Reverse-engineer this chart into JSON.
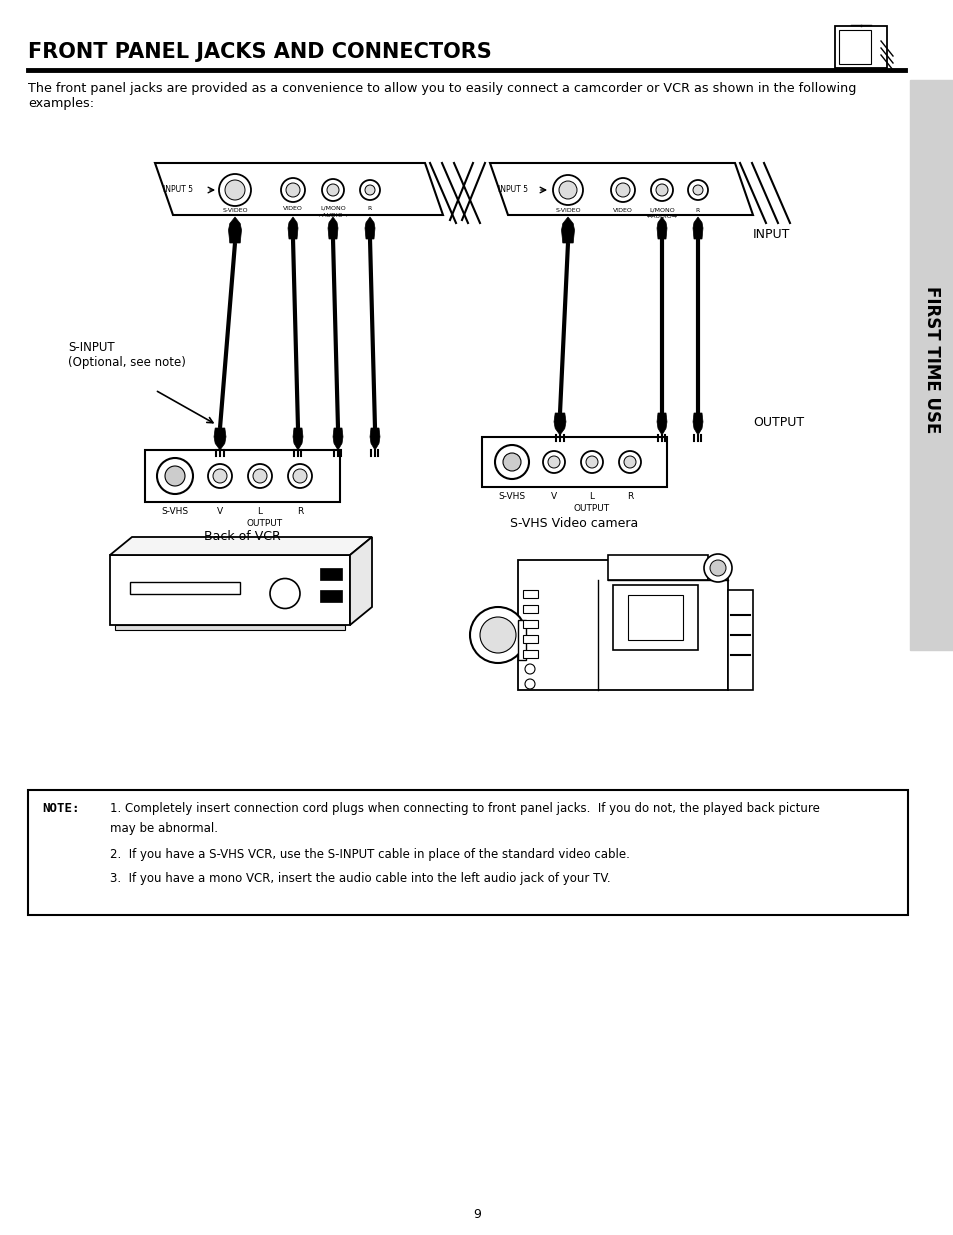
{
  "title": "FRONT PANEL JACKS AND CONNECTORS",
  "title_fontsize": 15,
  "page_bg": "#ffffff",
  "sidebar_bg": "#d0d0d0",
  "sidebar_text": "FIRST TIME USE",
  "sidebar_fontsize": 12,
  "intro_text": "The front panel jacks are provided as a convenience to allow you to easily connect a camcorder or VCR as shown in the following\nexamples:",
  "intro_fontsize": 9.2,
  "left_label": "Back of VCR",
  "right_label": "S-VHS Video camera",
  "left_sinput_label": "S-INPUT\n(Optional, see note)",
  "note_bold_text": "NOTE:",
  "note_line1": "1. Completely insert connection cord plugs when connecting to front panel jacks.  If you do not, the played back picture",
  "note_line2": "may be abnormal.",
  "note_line3": "2.  If you have a S-VHS VCR, use the S-INPUT cable in place of the standard video cable.",
  "note_line4": "3.  If you have a mono VCR, insert the audio cable into the left audio jack of your TV.",
  "page_number": "9",
  "right_labels_input": "INPUT",
  "right_labels_output": "OUTPUT"
}
